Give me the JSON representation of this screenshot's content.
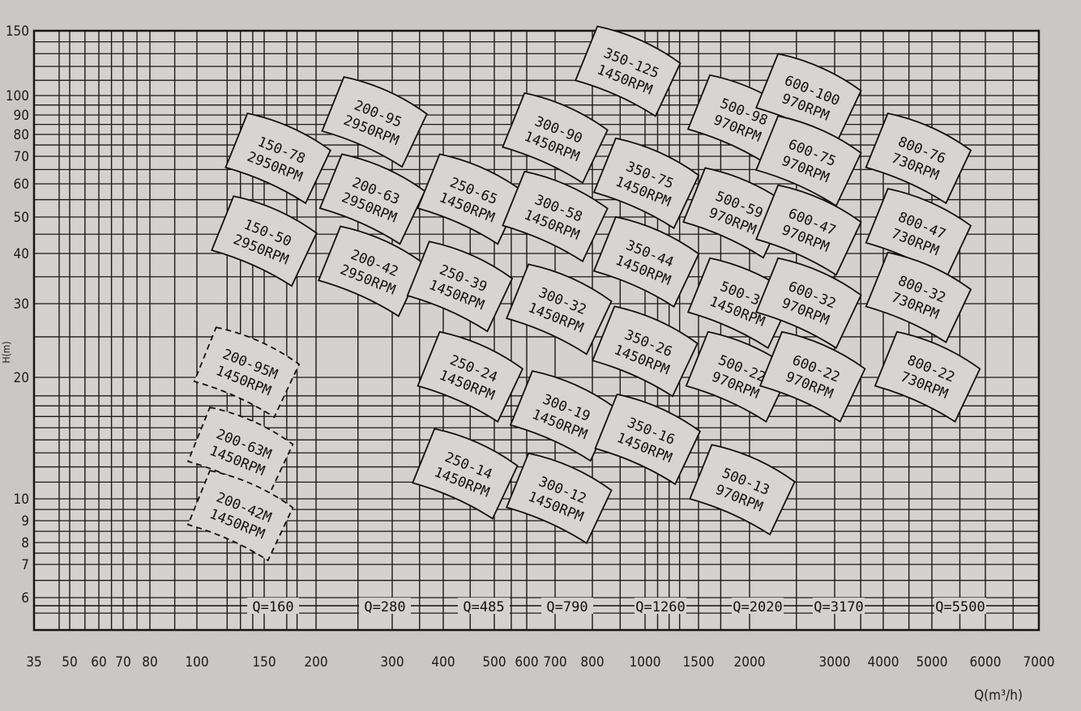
{
  "chart_data": {
    "type": "table",
    "title": "",
    "xlabel": "Q(m³/h)",
    "ylabel": "H(m)",
    "x_scale": "log",
    "y_scale": "log",
    "xlim": [
      35,
      7000
    ],
    "ylim": [
      5,
      150
    ],
    "grid": true,
    "x_ticks": [
      "35",
      "50",
      "60",
      "70",
      "80",
      "100",
      "150",
      "200",
      "300",
      "400",
      "500",
      "600",
      "700",
      "800",
      "1000",
      "1500",
      "2000",
      "3000",
      "4000",
      "5000",
      "6000",
      "7000"
    ],
    "y_ticks": [
      "150",
      "100",
      "90",
      "80",
      "70",
      "60",
      "50",
      "40",
      "30",
      "20",
      "10",
      "9",
      "8",
      "7",
      "6"
    ],
    "regions": [
      {
        "model": "150-78",
        "rpm": "2950RPM",
        "q": 162,
        "h": 69,
        "dashed": false
      },
      {
        "model": "150-50",
        "rpm": "2950RPM",
        "q": 150,
        "h": 43,
        "dashed": false
      },
      {
        "model": "200-95",
        "rpm": "2950RPM",
        "q": 273,
        "h": 86,
        "dashed": false
      },
      {
        "model": "200-63",
        "rpm": "2950RPM",
        "q": 270,
        "h": 55,
        "dashed": false
      },
      {
        "model": "200-42",
        "rpm": "2950RPM",
        "q": 268,
        "h": 36,
        "dashed": false
      },
      {
        "model": "250-65",
        "rpm": "1450RPM",
        "q": 450,
        "h": 55,
        "dashed": false
      },
      {
        "model": "250-39",
        "rpm": "1450RPM",
        "q": 430,
        "h": 33,
        "dashed": false
      },
      {
        "model": "250-24",
        "rpm": "1450RPM",
        "q": 450,
        "h": 20,
        "dashed": false
      },
      {
        "model": "250-14",
        "rpm": "1450RPM",
        "q": 440,
        "h": 11.5,
        "dashed": false
      },
      {
        "model": "300-90",
        "rpm": "1450RPM",
        "q": 700,
        "h": 78,
        "dashed": false
      },
      {
        "model": "300-58",
        "rpm": "1450RPM",
        "q": 700,
        "h": 50,
        "dashed": false
      },
      {
        "model": "300-32",
        "rpm": "1450RPM",
        "q": 710,
        "h": 29,
        "dashed": false
      },
      {
        "model": "300-19",
        "rpm": "1450RPM",
        "q": 720,
        "h": 16,
        "dashed": false
      },
      {
        "model": "300-12",
        "rpm": "1450RPM",
        "q": 710,
        "h": 10,
        "dashed": false
      },
      {
        "model": "350-125",
        "rpm": "1450RPM",
        "q": 930,
        "h": 116,
        "dashed": false
      },
      {
        "model": "350-75",
        "rpm": "1450RPM",
        "q": 1010,
        "h": 60,
        "dashed": false
      },
      {
        "model": "350-44",
        "rpm": "1450RPM",
        "q": 1010,
        "h": 38,
        "dashed": false
      },
      {
        "model": "350-26",
        "rpm": "1450RPM",
        "q": 1000,
        "h": 23,
        "dashed": false
      },
      {
        "model": "350-16",
        "rpm": "1450RPM",
        "q": 1020,
        "h": 14,
        "dashed": false
      },
      {
        "model": "500-98",
        "rpm": "970RPM",
        "q": 1900,
        "h": 87,
        "dashed": false
      },
      {
        "model": "500-59",
        "rpm": "970RPM",
        "q": 1850,
        "h": 51,
        "dashed": false
      },
      {
        "model": "500-35",
        "rpm": "1450RPM",
        "q": 1900,
        "h": 30,
        "dashed": false
      },
      {
        "model": "500-22",
        "rpm": "970RPM",
        "q": 1880,
        "h": 20,
        "dashed": false
      },
      {
        "model": "500-13",
        "rpm": "970RPM",
        "q": 1920,
        "h": 10.5,
        "dashed": false
      },
      {
        "model": "600-100",
        "rpm": "970RPM",
        "q": 2650,
        "h": 98,
        "dashed": false
      },
      {
        "model": "600-75",
        "rpm": "970RPM",
        "q": 2650,
        "h": 68,
        "dashed": false
      },
      {
        "model": "600-47",
        "rpm": "970RPM",
        "q": 2650,
        "h": 46,
        "dashed": false
      },
      {
        "model": "600-32",
        "rpm": "970RPM",
        "q": 2650,
        "h": 30,
        "dashed": false
      },
      {
        "model": "600-22",
        "rpm": "970RPM",
        "q": 2700,
        "h": 20,
        "dashed": false
      },
      {
        "model": "800-76",
        "rpm": "730RPM",
        "q": 4700,
        "h": 69,
        "dashed": false
      },
      {
        "model": "800-47",
        "rpm": "730RPM",
        "q": 4700,
        "h": 45,
        "dashed": false
      },
      {
        "model": "800-32",
        "rpm": "730RPM",
        "q": 4700,
        "h": 31,
        "dashed": false
      },
      {
        "model": "800-22",
        "rpm": "730RPM",
        "q": 4900,
        "h": 20,
        "dashed": false
      },
      {
        "model": "200-95M",
        "rpm": "1450RPM",
        "q": 135,
        "h": 20.5,
        "dashed": true
      },
      {
        "model": "200-63M",
        "rpm": "1450RPM",
        "q": 130,
        "h": 13,
        "dashed": true
      },
      {
        "model": "200-42M",
        "rpm": "1450RPM",
        "q": 130,
        "h": 9.2,
        "dashed": true
      }
    ],
    "annotations": [
      "Q=160",
      "Q=280",
      "Q=485",
      "Q=790",
      "Q=1260",
      "Q=2020",
      "Q=3170",
      "Q=5500"
    ]
  }
}
